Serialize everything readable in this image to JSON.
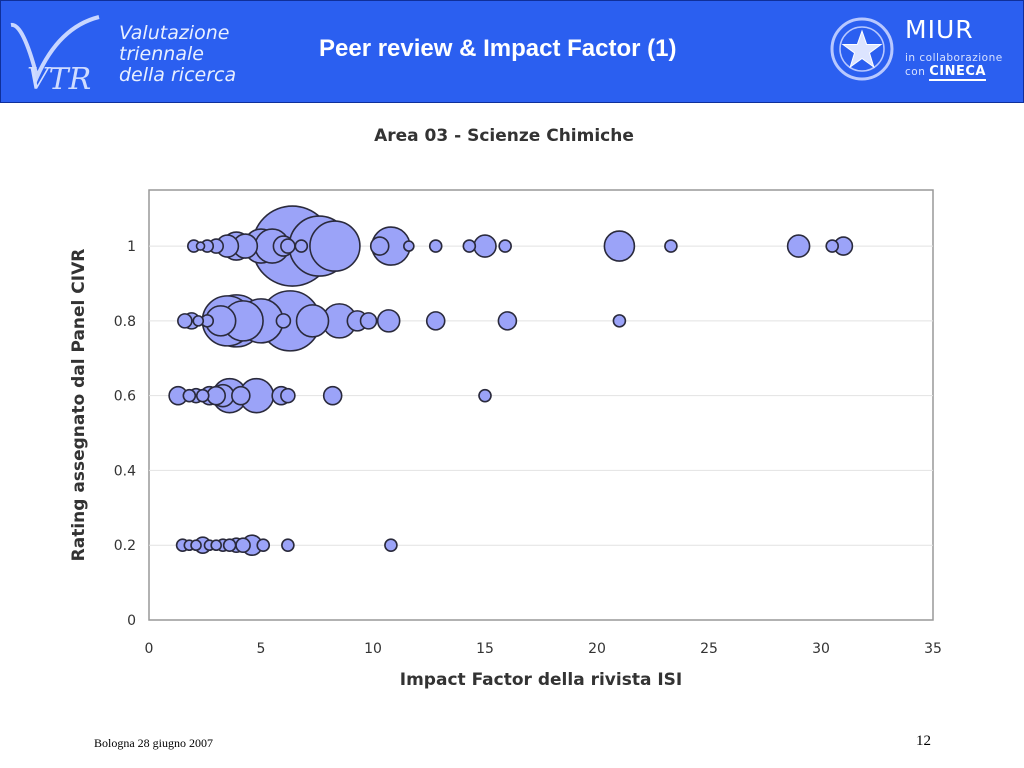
{
  "header": {
    "logo_letters": "VTR",
    "logo_lines": [
      "Valutazione",
      "triennale",
      "della ricerca"
    ],
    "title": "Peer review & Impact Factor (1)",
    "miur_name": "MIUR",
    "collab_line1": "in collaborazione",
    "collab_prefix": "con",
    "collab_org": "CINECA"
  },
  "chart_data": {
    "type": "scatter",
    "bubble": true,
    "title": "Area 03 - Scienze Chimiche",
    "xlabel": "Impact Factor della rivista ISI",
    "ylabel": "Rating assegnato dal Panel CIVR",
    "xlim": [
      0,
      35
    ],
    "ylim": [
      0,
      1.15
    ],
    "xticks": [
      0,
      5,
      10,
      15,
      20,
      25,
      30,
      35
    ],
    "yticks": [
      0,
      0.2,
      0.4,
      0.6,
      0.8,
      1
    ],
    "grid": true,
    "legend": "none",
    "bubble_color": "#9ba3f8",
    "points": [
      {
        "x": 2.0,
        "y": 1,
        "size": 6
      },
      {
        "x": 2.3,
        "y": 1,
        "size": 4
      },
      {
        "x": 2.6,
        "y": 1,
        "size": 6
      },
      {
        "x": 3.0,
        "y": 1,
        "size": 7
      },
      {
        "x": 3.5,
        "y": 1,
        "size": 11
      },
      {
        "x": 3.9,
        "y": 1,
        "size": 14
      },
      {
        "x": 4.3,
        "y": 1,
        "size": 12
      },
      {
        "x": 5.0,
        "y": 1,
        "size": 17
      },
      {
        "x": 5.5,
        "y": 1,
        "size": 17
      },
      {
        "x": 6.0,
        "y": 1,
        "size": 10
      },
      {
        "x": 6.2,
        "y": 1,
        "size": 7
      },
      {
        "x": 6.4,
        "y": 1,
        "size": 40
      },
      {
        "x": 6.8,
        "y": 1,
        "size": 6
      },
      {
        "x": 7.6,
        "y": 1,
        "size": 30
      },
      {
        "x": 8.3,
        "y": 1,
        "size": 25
      },
      {
        "x": 10.3,
        "y": 1,
        "size": 9
      },
      {
        "x": 10.8,
        "y": 1,
        "size": 19
      },
      {
        "x": 11.6,
        "y": 1,
        "size": 5
      },
      {
        "x": 12.8,
        "y": 1,
        "size": 6
      },
      {
        "x": 14.3,
        "y": 1,
        "size": 6
      },
      {
        "x": 15.0,
        "y": 1,
        "size": 11
      },
      {
        "x": 15.9,
        "y": 1,
        "size": 6
      },
      {
        "x": 21.0,
        "y": 1,
        "size": 15
      },
      {
        "x": 23.3,
        "y": 1,
        "size": 6
      },
      {
        "x": 29.0,
        "y": 1,
        "size": 11
      },
      {
        "x": 30.5,
        "y": 1,
        "size": 6
      },
      {
        "x": 31.0,
        "y": 1,
        "size": 9
      },
      {
        "x": 1.6,
        "y": 0.8,
        "size": 7
      },
      {
        "x": 1.9,
        "y": 0.8,
        "size": 8
      },
      {
        "x": 2.2,
        "y": 0.8,
        "size": 5
      },
      {
        "x": 2.6,
        "y": 0.8,
        "size": 6
      },
      {
        "x": 3.2,
        "y": 0.8,
        "size": 15
      },
      {
        "x": 3.5,
        "y": 0.8,
        "size": 25
      },
      {
        "x": 3.9,
        "y": 0.8,
        "size": 26
      },
      {
        "x": 4.2,
        "y": 0.8,
        "size": 20
      },
      {
        "x": 5.0,
        "y": 0.8,
        "size": 22
      },
      {
        "x": 6.0,
        "y": 0.8,
        "size": 7
      },
      {
        "x": 6.3,
        "y": 0.8,
        "size": 30
      },
      {
        "x": 7.3,
        "y": 0.8,
        "size": 16
      },
      {
        "x": 8.5,
        "y": 0.8,
        "size": 17
      },
      {
        "x": 9.3,
        "y": 0.8,
        "size": 10
      },
      {
        "x": 9.8,
        "y": 0.8,
        "size": 8
      },
      {
        "x": 10.7,
        "y": 0.8,
        "size": 11
      },
      {
        "x": 12.8,
        "y": 0.8,
        "size": 9
      },
      {
        "x": 16.0,
        "y": 0.8,
        "size": 9
      },
      {
        "x": 21.0,
        "y": 0.8,
        "size": 6
      },
      {
        "x": 1.3,
        "y": 0.6,
        "size": 9
      },
      {
        "x": 1.8,
        "y": 0.6,
        "size": 6
      },
      {
        "x": 2.1,
        "y": 0.6,
        "size": 7
      },
      {
        "x": 2.4,
        "y": 0.6,
        "size": 6
      },
      {
        "x": 2.7,
        "y": 0.6,
        "size": 9
      },
      {
        "x": 3.0,
        "y": 0.6,
        "size": 9
      },
      {
        "x": 3.3,
        "y": 0.6,
        "size": 11
      },
      {
        "x": 3.6,
        "y": 0.6,
        "size": 17
      },
      {
        "x": 4.1,
        "y": 0.6,
        "size": 9
      },
      {
        "x": 4.8,
        "y": 0.6,
        "size": 17
      },
      {
        "x": 5.9,
        "y": 0.6,
        "size": 9
      },
      {
        "x": 6.2,
        "y": 0.6,
        "size": 7
      },
      {
        "x": 8.2,
        "y": 0.6,
        "size": 9
      },
      {
        "x": 15.0,
        "y": 0.6,
        "size": 6
      },
      {
        "x": 1.5,
        "y": 0.2,
        "size": 6
      },
      {
        "x": 1.8,
        "y": 0.2,
        "size": 5
      },
      {
        "x": 2.1,
        "y": 0.2,
        "size": 5
      },
      {
        "x": 2.4,
        "y": 0.2,
        "size": 8
      },
      {
        "x": 2.7,
        "y": 0.2,
        "size": 5
      },
      {
        "x": 3.0,
        "y": 0.2,
        "size": 5
      },
      {
        "x": 3.3,
        "y": 0.2,
        "size": 6
      },
      {
        "x": 3.6,
        "y": 0.2,
        "size": 6
      },
      {
        "x": 3.9,
        "y": 0.2,
        "size": 7
      },
      {
        "x": 4.2,
        "y": 0.2,
        "size": 7
      },
      {
        "x": 4.6,
        "y": 0.2,
        "size": 10
      },
      {
        "x": 5.1,
        "y": 0.2,
        "size": 6
      },
      {
        "x": 6.2,
        "y": 0.2,
        "size": 6
      },
      {
        "x": 10.8,
        "y": 0.2,
        "size": 6
      }
    ]
  },
  "footer": {
    "left": "Bologna 28 giugno 2007",
    "page": "12"
  }
}
